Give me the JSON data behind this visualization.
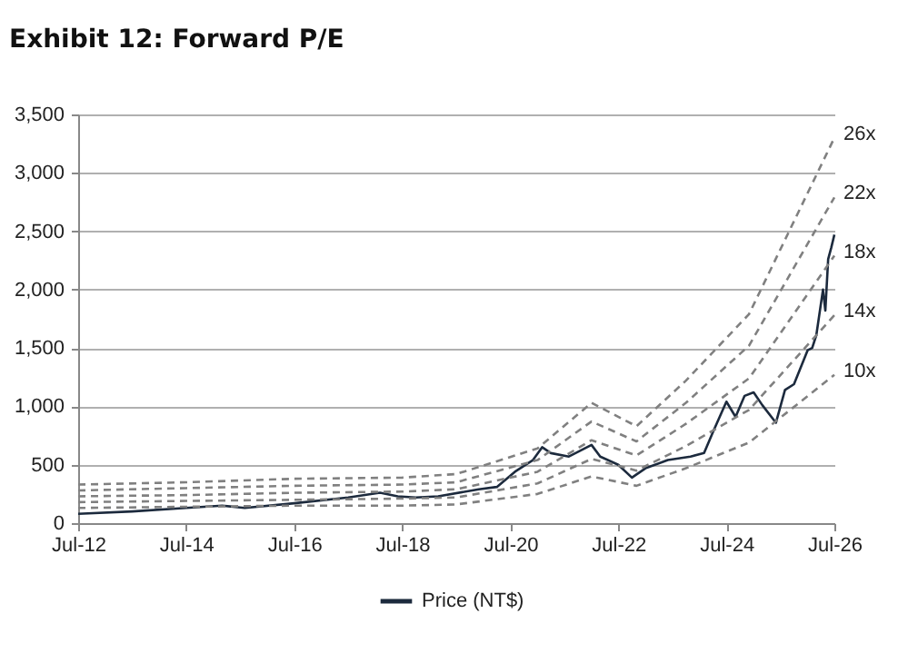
{
  "chart_data": {
    "type": "line",
    "title": "Exhibit 12: Forward P/E",
    "xlim": [
      "2012-07",
      "2026-07"
    ],
    "xticks": [
      {
        "value": "2012-07",
        "label": "Jul-12"
      },
      {
        "value": "2014-07",
        "label": "Jul-14"
      },
      {
        "value": "2016-07",
        "label": "Jul-16"
      },
      {
        "value": "2018-07",
        "label": "Jul-18"
      },
      {
        "value": "2020-07",
        "label": "Jul-20"
      },
      {
        "value": "2022-07",
        "label": "Jul-22"
      },
      {
        "value": "2024-07",
        "label": "Jul-24"
      },
      {
        "value": "2026-07",
        "label": "Jul-26"
      }
    ],
    "ylim": [
      0,
      3500
    ],
    "yticks": [
      0,
      500,
      {
        "value": 1000,
        "label": "1,000"
      },
      {
        "value": 1500,
        "label": "1,500"
      },
      {
        "value": 2000,
        "label": "2,000"
      },
      {
        "value": 2500,
        "label": "2,500"
      },
      {
        "value": 3000,
        "label": "3,000"
      },
      {
        "value": 3500,
        "label": "3,500"
      }
    ],
    "grid": "y",
    "legend": "bottom",
    "marker": "none",
    "series": [
      {
        "name": "Price (NT$)",
        "color": "#1c2a3d",
        "line_style": "solid",
        "x": [
          "2012-07",
          "2013-07",
          "2014-07",
          "2015-03",
          "2015-08",
          "2016-07",
          "2017-07",
          "2018-02",
          "2018-06",
          "2018-10",
          "2019-03",
          "2019-12",
          "2020-04",
          "2020-08",
          "2020-12",
          "2021-02",
          "2021-04",
          "2021-08",
          "2022-01",
          "2022-03",
          "2022-07",
          "2022-10",
          "2023-01",
          "2023-06",
          "2023-11",
          "2024-02",
          "2024-04",
          "2024-07",
          "2024-09",
          "2024-11",
          "2025-01",
          "2025-03",
          "2025-06",
          "2025-08",
          "2025-10",
          "2026-01",
          "2026-02",
          "2026-03",
          "2026-04-15",
          "2026-05",
          "2026-05-20",
          "2026-06-10",
          "2026-07"
        ],
        "values": [
          80,
          100,
          130,
          150,
          130,
          170,
          220,
          260,
          230,
          220,
          230,
          290,
          310,
          440,
          540,
          650,
          600,
          570,
          670,
          570,
          500,
          390,
          470,
          540,
          570,
          600,
          780,
          1040,
          910,
          1090,
          1120,
          1010,
          860,
          1140,
          1190,
          1480,
          1500,
          1610,
          2000,
          1820,
          2260,
          2360,
          2470
        ]
      },
      {
        "name": "10x",
        "color": "#808080",
        "line_style": "dashed",
        "x": [
          "2012-07",
          "2014-07",
          "2016-07",
          "2018-07",
          "2019-07",
          "2021-01",
          "2022-01",
          "2022-11",
          "2023-10",
          "2024-12",
          "2026-07"
        ],
        "values": [
          130,
          140,
          150,
          150,
          160,
          250,
          400,
          320,
          470,
          690,
          1270
        ]
      },
      {
        "name": "14x",
        "color": "#808080",
        "line_style": "dashed",
        "x": [
          "2012-07",
          "2014-07",
          "2016-07",
          "2018-07",
          "2019-07",
          "2021-01",
          "2022-01",
          "2022-11",
          "2023-10",
          "2024-12",
          "2026-07"
        ],
        "values": [
          180,
          190,
          200,
          210,
          220,
          340,
          550,
          450,
          660,
          970,
          1780
        ]
      },
      {
        "name": "18x",
        "color": "#808080",
        "line_style": "dashed",
        "x": [
          "2012-07",
          "2014-07",
          "2016-07",
          "2018-07",
          "2019-07",
          "2021-01",
          "2022-01",
          "2022-11",
          "2023-10",
          "2024-12",
          "2026-07"
        ],
        "values": [
          230,
          240,
          260,
          270,
          290,
          440,
          710,
          580,
          850,
          1240,
          2290
        ]
      },
      {
        "name": "22x",
        "color": "#808080",
        "line_style": "dashed",
        "x": [
          "2012-07",
          "2014-07",
          "2016-07",
          "2018-07",
          "2019-07",
          "2021-01",
          "2022-01",
          "2022-11",
          "2023-10",
          "2024-12",
          "2026-07"
        ],
        "values": [
          280,
          300,
          320,
          330,
          350,
          540,
          870,
          700,
          1030,
          1520,
          2790
        ]
      },
      {
        "name": "26x",
        "color": "#808080",
        "line_style": "dashed",
        "x": [
          "2012-07",
          "2014-07",
          "2016-07",
          "2018-07",
          "2019-07",
          "2021-01",
          "2022-01",
          "2022-11",
          "2023-10",
          "2024-12",
          "2026-07"
        ],
        "values": [
          330,
          350,
          380,
          390,
          420,
          640,
          1030,
          830,
          1220,
          1790,
          3300
        ]
      }
    ]
  }
}
